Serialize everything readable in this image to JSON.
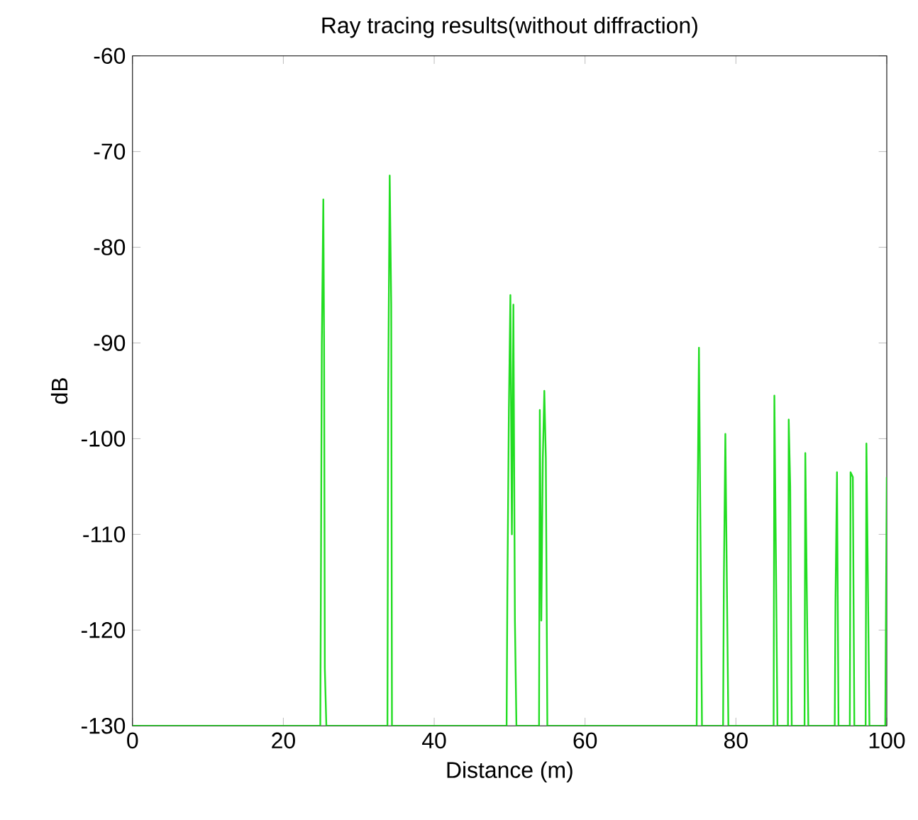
{
  "chart_data": {
    "type": "line",
    "title": "Ray tracing results(without diffraction)",
    "xlabel": "Distance (m)",
    "ylabel": "dB",
    "xlim": [
      0,
      100
    ],
    "ylim": [
      -130,
      -60
    ],
    "xticks": [
      0,
      20,
      40,
      60,
      80,
      100
    ],
    "yticks": [
      -130,
      -120,
      -110,
      -100,
      -90,
      -80,
      -70,
      -60
    ],
    "grid": false,
    "marker": "none",
    "line_style": "solid",
    "series": [
      {
        "color": "#22dd22",
        "x": [
          0,
          24.9,
          25.0,
          25.1,
          25.3,
          25.4,
          25.5,
          25.7,
          33.8,
          33.9,
          34.1,
          34.3,
          34.4,
          49.6,
          49.7,
          49.9,
          50.1,
          50.3,
          50.5,
          50.7,
          50.9,
          53.9,
          54.0,
          54.2,
          54.4,
          54.6,
          54.8,
          55.0,
          74.8,
          74.9,
          75.1,
          75.3,
          75.5,
          78.3,
          78.4,
          78.6,
          78.8,
          79.0,
          85.0,
          85.1,
          85.3,
          85.5,
          86.9,
          87.0,
          87.2,
          87.4,
          89.1,
          89.2,
          89.4,
          89.6,
          93.1,
          93.2,
          93.4,
          93.6,
          95.1,
          95.2,
          95.5,
          95.7,
          97.2,
          97.3,
          97.5,
          97.7,
          99.8,
          100
        ],
        "values": [
          -130,
          -130,
          -111,
          -90,
          -75,
          -90,
          -124,
          -130,
          -130,
          -95,
          -72.5,
          -86,
          -130,
          -130,
          -116,
          -97,
          -85,
          -110,
          -86,
          -119,
          -130,
          -130,
          -97,
          -119,
          -102,
          -95,
          -102,
          -130,
          -130,
          -109,
          -90.5,
          -110,
          -130,
          -130,
          -115,
          -99.5,
          -115,
          -130,
          -130,
          -95.5,
          -112,
          -130,
          -130,
          -98,
          -105,
          -130,
          -130,
          -101.5,
          -116,
          -130,
          -130,
          -117,
          -103.5,
          -130,
          -130,
          -103.5,
          -104,
          -130,
          -130,
          -100.5,
          -115,
          -130,
          -130,
          -104
        ]
      }
    ]
  }
}
